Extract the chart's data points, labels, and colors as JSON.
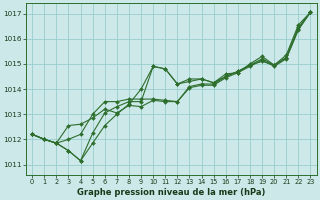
{
  "xlabel": "Graphe pression niveau de la mer (hPa)",
  "bg_color": "#cce8e8",
  "grid_color": "#99cccc",
  "line_color": "#2d6e2d",
  "marker_color": "#2d6e2d",
  "ylim": [
    1010.6,
    1017.4
  ],
  "xlim": [
    -0.5,
    23.5
  ],
  "yticks": [
    1011,
    1012,
    1013,
    1014,
    1015,
    1016,
    1017
  ],
  "xticks": [
    0,
    1,
    2,
    3,
    4,
    5,
    6,
    7,
    8,
    9,
    10,
    11,
    12,
    13,
    14,
    15,
    16,
    17,
    18,
    19,
    20,
    21,
    22,
    23
  ],
  "series": [
    [
      1012.2,
      1012.0,
      1011.85,
      1011.55,
      1011.15,
      1011.85,
      1012.55,
      1013.0,
      1013.4,
      1014.0,
      1014.9,
      1014.8,
      1014.2,
      1014.4,
      1014.4,
      1014.25,
      1014.6,
      1014.65,
      1015.0,
      1015.3,
      1014.95,
      1015.35,
      1016.55,
      1017.05
    ],
    [
      1012.2,
      1012.0,
      1011.85,
      1012.55,
      1012.6,
      1012.85,
      1013.2,
      1013.05,
      1013.35,
      1013.3,
      1013.55,
      1013.5,
      1013.5,
      1014.1,
      1014.2,
      1014.2,
      1014.5,
      1014.7,
      1014.95,
      1015.2,
      1014.95,
      1015.25,
      1016.45,
      1017.05
    ],
    [
      1012.2,
      1012.0,
      1011.85,
      1011.55,
      1011.15,
      1012.25,
      1013.05,
      1013.3,
      1013.5,
      1013.5,
      1014.9,
      1014.8,
      1014.2,
      1014.3,
      1014.4,
      1014.25,
      1014.5,
      1014.7,
      1014.95,
      1015.1,
      1014.95,
      1015.25,
      1016.4,
      1017.05
    ],
    [
      1012.2,
      1012.0,
      1011.85,
      1012.0,
      1012.2,
      1013.0,
      1013.5,
      1013.5,
      1013.6,
      1013.6,
      1013.6,
      1013.55,
      1013.5,
      1014.05,
      1014.15,
      1014.15,
      1014.45,
      1014.65,
      1014.9,
      1015.15,
      1014.9,
      1015.2,
      1016.35,
      1017.05
    ]
  ]
}
